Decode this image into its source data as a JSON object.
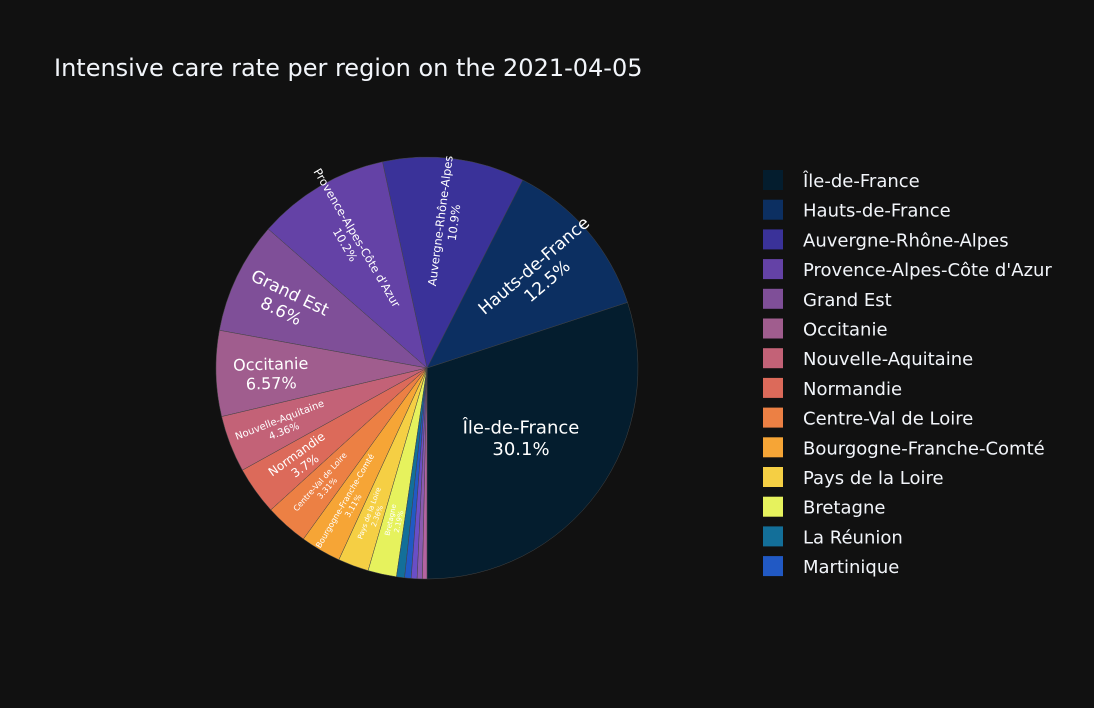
{
  "chart_data": {
    "type": "pie",
    "title": "Intensive care rate per region on the 2021-04-05",
    "slices": [
      {
        "label": "Île-de-France",
        "value": 30.1,
        "text": "30.1%",
        "color": "#041d2e"
      },
      {
        "label": "Hauts-de-France",
        "value": 12.5,
        "text": "12.5%",
        "color": "#0c2f61"
      },
      {
        "label": "Auvergne-Rhône-Alpes",
        "value": 10.9,
        "text": "10.9%",
        "color": "#3a3299"
      },
      {
        "label": "Provence-Alpes-Côte d'Azur",
        "value": 10.2,
        "text": "10.2%",
        "color": "#6442a6"
      },
      {
        "label": "Grand Est",
        "value": 8.6,
        "text": "8.6%",
        "color": "#7f4f98"
      },
      {
        "label": "Occitanie",
        "value": 6.57,
        "text": "6.57%",
        "color": "#a05d8e"
      },
      {
        "label": "Nouvelle-Aquitaine",
        "value": 4.36,
        "text": "4.36%",
        "color": "#c36277"
      },
      {
        "label": "Normandie",
        "value": 3.7,
        "text": "3.7%",
        "color": "#dc6a5a"
      },
      {
        "label": "Centre-Val de Loire",
        "value": 3.31,
        "text": "3.31%",
        "color": "#ec8044"
      },
      {
        "label": "Bourgogne-Franche-Comté",
        "value": 3.11,
        "text": "3.11%",
        "color": "#f6a536"
      },
      {
        "label": "Pays de la Loire",
        "value": 2.36,
        "text": "2.36%",
        "color": "#f5cf44"
      },
      {
        "label": "Bretagne",
        "value": 2.19,
        "text": "2.19%",
        "color": "#e6f25d"
      },
      {
        "label": "La Réunion",
        "value": 0.62,
        "text": "",
        "color": "#136f99"
      },
      {
        "label": "Martinique",
        "value": 0.5,
        "text": "",
        "color": "#2159c4"
      },
      {
        "label": "",
        "value": 0.45,
        "text": "",
        "color": "#6a4ec6",
        "in_legend": false
      },
      {
        "label": "",
        "value": 0.4,
        "text": "",
        "color": "#8a5bb0",
        "in_legend": false
      },
      {
        "label": "",
        "value": 0.35,
        "text": "",
        "color": "#b463a0",
        "in_legend": false
      }
    ],
    "sort": "descending",
    "direction": "counterclockwise",
    "start": "bottom",
    "legend_position": "right"
  }
}
